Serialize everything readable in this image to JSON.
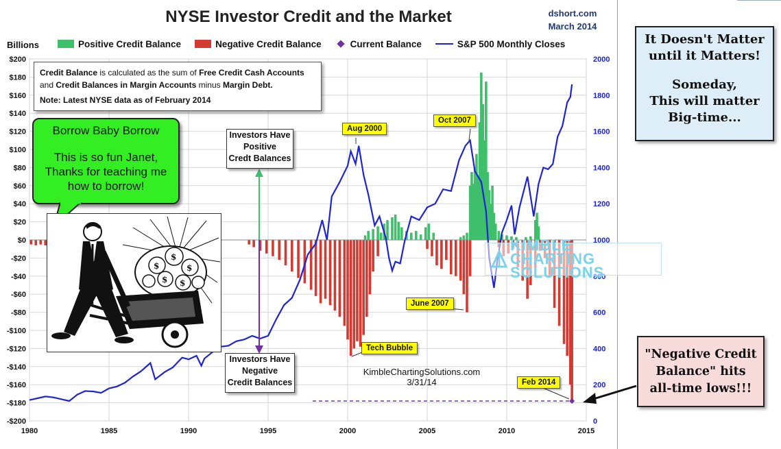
{
  "header": {
    "title": "NYSE Investor Credit and the Market",
    "source_site": "dshort.com",
    "source_date": "March 2014"
  },
  "axis": {
    "left_unit": "Billions"
  },
  "legend": [
    {
      "label": "Positive Credit Balance",
      "color": "#3fbf6b"
    },
    {
      "label": "Negative Credit Balance",
      "color": "#d23a32"
    },
    {
      "label": "Current Balance",
      "color": "#7030a0"
    },
    {
      "label": "S&P 500 Monthly Closes",
      "color": "#1e23d6"
    }
  ],
  "infobox": {
    "p1": "Credit Balance",
    "p2": " is calculated as the sum of ",
    "p3": "Free Credit Cash Accounts",
    "p4": "and ",
    "p5": "Credit Balances in Margin Accounts",
    "p6": " minus ",
    "p7": "Margin Debt.",
    "note": "Note: Latest NYSE data as of February 2014"
  },
  "speech": {
    "line1": "Borrow Baby Borrow",
    "line2": "This is so fun Janet,",
    "line3": "Thanks for teaching me",
    "line4": "how to borrow!"
  },
  "annotations": {
    "positive": [
      "Investors Have",
      "Positive",
      "Credt Balances"
    ],
    "negative": [
      "Investors Have",
      "Negative",
      "Credit Balances"
    ],
    "aug2000": "Aug 2000",
    "oct2007": "Oct 2007",
    "june2007": "June 2007",
    "tech": "Tech Bubble",
    "feb2014": "Feb 2014"
  },
  "watermark": {
    "line1": "KIMBLE CHARTING",
    "line2": "SOLUTIONS"
  },
  "credit": {
    "line1": "KimbleChartingSolutions.com",
    "line2": "3/31/14"
  },
  "side_notes": {
    "box1": [
      "It Doesn't Matter",
      "until it Matters!",
      "Someday,",
      "This will matter",
      "Big-time..."
    ],
    "box2": [
      "\"Negative Credit",
      "Balance\" hits",
      "all-time lows!!!"
    ]
  },
  "chart_data": {
    "type": "bar",
    "title": "NYSE Investor Credit and the Market",
    "x_ticks": [
      1980,
      1985,
      1990,
      1995,
      2000,
      2005,
      2010,
      2015
    ],
    "xlim": [
      1980,
      2015
    ],
    "left_axis": {
      "label": "Billions",
      "ylim": [
        -200,
        200
      ],
      "ticks": [
        -200,
        -180,
        -160,
        -140,
        -120,
        -100,
        -80,
        -60,
        -40,
        -20,
        0,
        20,
        40,
        60,
        80,
        100,
        120,
        140,
        160,
        180,
        200
      ]
    },
    "right_axis": {
      "ylim": [
        0,
        2000
      ],
      "ticks": [
        0,
        200,
        400,
        600,
        800,
        1000,
        1200,
        1400,
        1600,
        1800,
        2000
      ]
    },
    "series": [
      {
        "name": "Positive Credit Balance",
        "kind": "bar",
        "color": "#3fbf6b",
        "points": [
          [
            2001.1,
            5
          ],
          [
            2001.3,
            10
          ],
          [
            2001.6,
            12
          ],
          [
            2001.9,
            15
          ],
          [
            2002.1,
            8
          ],
          [
            2002.3,
            18
          ],
          [
            2002.5,
            22
          ],
          [
            2002.8,
            25
          ],
          [
            2003.0,
            28
          ],
          [
            2003.2,
            20
          ],
          [
            2003.4,
            14
          ],
          [
            2003.7,
            10
          ],
          [
            2004.0,
            8
          ],
          [
            2004.3,
            10
          ],
          [
            2004.6,
            6
          ],
          [
            2004.9,
            14
          ],
          [
            2005.1,
            18
          ],
          [
            2005.4,
            8
          ],
          [
            2007.1,
            3
          ],
          [
            2007.3,
            5
          ],
          [
            2007.5,
            8
          ],
          [
            2007.7,
            60
          ],
          [
            2007.8,
            75
          ],
          [
            2007.9,
            62
          ],
          [
            2008.0,
            80
          ],
          [
            2008.1,
            95
          ],
          [
            2008.2,
            70
          ],
          [
            2008.3,
            130
          ],
          [
            2008.4,
            185
          ],
          [
            2008.5,
            150
          ],
          [
            2008.6,
            110
          ],
          [
            2008.7,
            175
          ],
          [
            2008.8,
            75
          ],
          [
            2008.9,
            55
          ],
          [
            2009.0,
            40
          ],
          [
            2009.1,
            60
          ],
          [
            2009.2,
            30
          ],
          [
            2009.3,
            18
          ],
          [
            2009.5,
            10
          ],
          [
            2009.7,
            6
          ],
          [
            2010.0,
            5
          ],
          [
            2010.3,
            4
          ],
          [
            2010.6,
            3
          ],
          [
            2011.2,
            3
          ],
          [
            2011.5,
            4
          ],
          [
            2011.8,
            22
          ],
          [
            2011.9,
            30
          ],
          [
            2012.0,
            15
          ]
        ]
      },
      {
        "name": "Negative Credit Balance",
        "kind": "bar",
        "color": "#d23a32",
        "points": [
          [
            1980.1,
            -5
          ],
          [
            1980.4,
            -6
          ],
          [
            1980.7,
            -5
          ],
          [
            1981.0,
            -6
          ],
          [
            1993.8,
            -5
          ],
          [
            1994.1,
            -8
          ],
          [
            1994.5,
            -12
          ],
          [
            1994.9,
            -15
          ],
          [
            1995.3,
            -18
          ],
          [
            1995.7,
            -22
          ],
          [
            1996.1,
            -28
          ],
          [
            1996.5,
            -35
          ],
          [
            1996.9,
            -42
          ],
          [
            1997.3,
            -48
          ],
          [
            1997.7,
            -55
          ],
          [
            1998.0,
            -62
          ],
          [
            1998.3,
            -70
          ],
          [
            1998.6,
            -65
          ],
          [
            1998.9,
            -72
          ],
          [
            1999.2,
            -78
          ],
          [
            1999.5,
            -85
          ],
          [
            1999.8,
            -95
          ],
          [
            2000.0,
            -110
          ],
          [
            2000.2,
            -128
          ],
          [
            2000.4,
            -120
          ],
          [
            2000.6,
            -112
          ],
          [
            2000.8,
            -118
          ],
          [
            2001.0,
            -105
          ],
          [
            2001.2,
            -85
          ],
          [
            2001.4,
            -60
          ],
          [
            2001.6,
            -35
          ],
          [
            2001.9,
            -18
          ],
          [
            2005.0,
            -10
          ],
          [
            2005.3,
            -18
          ],
          [
            2005.6,
            -28
          ],
          [
            2005.9,
            -32
          ],
          [
            2006.2,
            -22
          ],
          [
            2006.5,
            -38
          ],
          [
            2006.8,
            -40
          ],
          [
            2007.1,
            -45
          ],
          [
            2007.3,
            -60
          ],
          [
            2007.5,
            -80
          ],
          [
            2007.7,
            -40
          ],
          [
            2009.5,
            -8
          ],
          [
            2009.8,
            -18
          ],
          [
            2010.1,
            -15
          ],
          [
            2010.4,
            -10
          ],
          [
            2010.7,
            -30
          ],
          [
            2011.0,
            -45
          ],
          [
            2011.3,
            -65
          ],
          [
            2011.5,
            -50
          ],
          [
            2011.8,
            -30
          ],
          [
            2012.1,
            -12
          ],
          [
            2012.4,
            -20
          ],
          [
            2012.7,
            -40
          ],
          [
            2013.0,
            -75
          ],
          [
            2013.3,
            -95
          ],
          [
            2013.6,
            -115
          ],
          [
            2013.8,
            -128
          ],
          [
            2014.0,
            -160
          ],
          [
            2014.1,
            -178
          ]
        ]
      },
      {
        "name": "Current Balance",
        "kind": "marker",
        "color": "#7030a0",
        "points": [
          [
            2014.1,
            -178
          ]
        ]
      },
      {
        "name": "S&P 500 Monthly Closes",
        "kind": "line",
        "axis": "right",
        "color": "#1e23d6",
        "points": [
          [
            1980.0,
            115
          ],
          [
            1980.5,
            125
          ],
          [
            1981.0,
            135
          ],
          [
            1981.5,
            130
          ],
          [
            1982.0,
            120
          ],
          [
            1982.5,
            110
          ],
          [
            1983.0,
            145
          ],
          [
            1983.5,
            165
          ],
          [
            1984.0,
            163
          ],
          [
            1984.5,
            155
          ],
          [
            1985.0,
            180
          ],
          [
            1985.5,
            190
          ],
          [
            1986.0,
            211
          ],
          [
            1986.5,
            245
          ],
          [
            1987.0,
            274
          ],
          [
            1987.6,
            320
          ],
          [
            1987.9,
            230
          ],
          [
            1988.5,
            270
          ],
          [
            1989.0,
            295
          ],
          [
            1989.6,
            350
          ],
          [
            1990.0,
            340
          ],
          [
            1990.5,
            360
          ],
          [
            1990.8,
            305
          ],
          [
            1991.0,
            345
          ],
          [
            1991.5,
            380
          ],
          [
            1992.0,
            410
          ],
          [
            1992.5,
            415
          ],
          [
            1993.0,
            440
          ],
          [
            1993.5,
            450
          ],
          [
            1994.0,
            470
          ],
          [
            1994.5,
            455
          ],
          [
            1995.0,
            470
          ],
          [
            1995.5,
            560
          ],
          [
            1996.0,
            640
          ],
          [
            1996.5,
            680
          ],
          [
            1997.0,
            780
          ],
          [
            1997.5,
            920
          ],
          [
            1998.0,
            980
          ],
          [
            1998.4,
            1110
          ],
          [
            1998.7,
            1000
          ],
          [
            1999.0,
            1240
          ],
          [
            1999.5,
            1320
          ],
          [
            2000.0,
            1410
          ],
          [
            2000.2,
            1490
          ],
          [
            2000.5,
            1420
          ],
          [
            2000.7,
            1520
          ],
          [
            2001.0,
            1360
          ],
          [
            2001.3,
            1250
          ],
          [
            2001.7,
            1080
          ],
          [
            2002.0,
            1130
          ],
          [
            2002.4,
            1010
          ],
          [
            2002.6,
            900
          ],
          [
            2002.8,
            830
          ],
          [
            2003.0,
            880
          ],
          [
            2003.3,
            870
          ],
          [
            2003.6,
            1000
          ],
          [
            2004.0,
            1130
          ],
          [
            2004.5,
            1110
          ],
          [
            2005.0,
            1180
          ],
          [
            2005.5,
            1200
          ],
          [
            2006.0,
            1280
          ],
          [
            2006.5,
            1270
          ],
          [
            2007.0,
            1440
          ],
          [
            2007.4,
            1520
          ],
          [
            2007.7,
            1550
          ],
          [
            2008.0,
            1380
          ],
          [
            2008.4,
            1320
          ],
          [
            2008.7,
            1160
          ],
          [
            2008.9,
            900
          ],
          [
            2009.2,
            735
          ],
          [
            2009.4,
            880
          ],
          [
            2009.7,
            1040
          ],
          [
            2010.0,
            1110
          ],
          [
            2010.3,
            1190
          ],
          [
            2010.5,
            1030
          ],
          [
            2010.8,
            1180
          ],
          [
            2011.3,
            1350
          ],
          [
            2011.7,
            1130
          ],
          [
            2012.0,
            1310
          ],
          [
            2012.3,
            1400
          ],
          [
            2012.6,
            1390
          ],
          [
            2012.9,
            1420
          ],
          [
            2013.2,
            1570
          ],
          [
            2013.5,
            1630
          ],
          [
            2013.8,
            1760
          ],
          [
            2014.0,
            1790
          ],
          [
            2014.1,
            1860
          ]
        ]
      }
    ],
    "current_balance_line": {
      "from": 1997.8,
      "to": 2014.1,
      "value": -178
    }
  }
}
